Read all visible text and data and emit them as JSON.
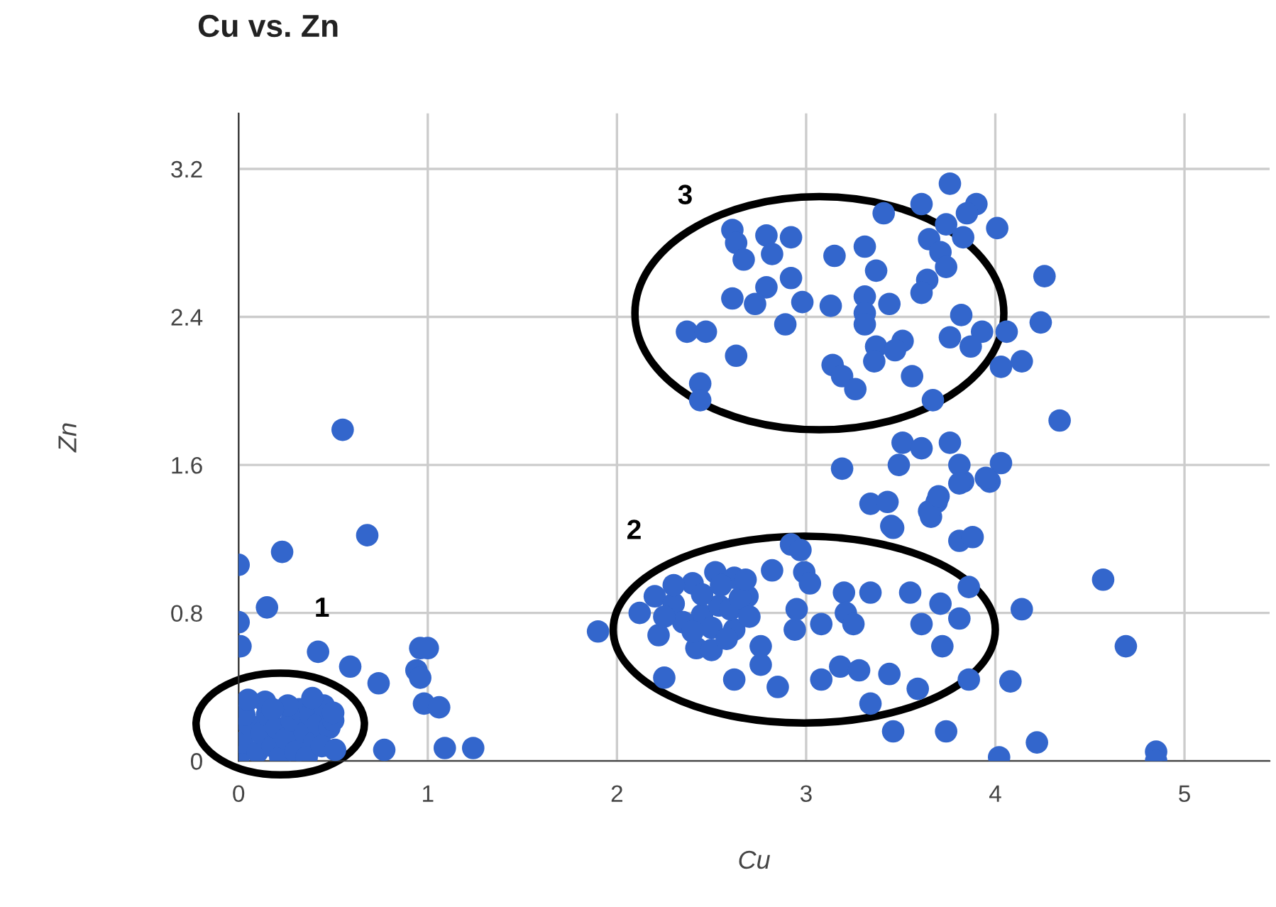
{
  "chart_data": {
    "type": "scatter",
    "title": "Cu vs. Zn",
    "xlabel": "Cu",
    "ylabel": "Zn",
    "xlim": [
      0,
      5.45
    ],
    "ylim": [
      0,
      3.5
    ],
    "xticks": [
      0,
      1,
      2,
      3,
      4,
      5
    ],
    "yticks": [
      0,
      0.8,
      1.6,
      2.4,
      3.2
    ],
    "grid": true,
    "marker": "circle",
    "annotations": [
      "1",
      "2",
      "3"
    ],
    "series": [
      {
        "color": "#3366cc",
        "x": [
          0.55,
          0.68,
          0.23,
          0,
          0.15,
          0,
          0.01,
          0.42,
          0.59,
          0.74,
          0.96,
          1.0,
          0.94,
          0.96,
          0.98,
          1.06,
          0.77,
          1.09,
          1.24,
          1.9,
          0.0,
          0.02,
          0.05,
          0.1,
          0.12,
          0.15,
          0.18,
          0.2,
          0.22,
          0.25,
          0.28,
          0.3,
          0.32,
          0.35,
          0.38,
          0.4,
          0.42,
          0.45,
          0.48,
          0.5,
          0.03,
          0.14,
          0.26,
          0.36,
          0.44,
          0.18,
          0.05,
          0.39,
          0.5,
          0.51,
          2.12,
          2.2,
          2.22,
          2.25,
          2.4,
          2.42,
          2.45,
          2.52,
          2.54,
          2.62,
          2.62,
          2.62,
          2.69,
          2.76,
          2.76,
          2.82,
          2.85,
          2.92,
          2.97,
          2.94,
          2.95,
          2.99,
          3.02,
          3.08,
          3.08,
          3.18,
          3.2,
          3.21,
          3.25,
          3.28,
          3.34,
          3.34,
          3.44,
          3.46,
          3.46,
          3.55,
          3.59,
          3.61,
          3.66,
          3.71,
          3.72,
          3.74,
          3.81,
          3.88,
          3.81,
          3.86,
          3.86,
          4.08,
          4.14,
          4.02,
          4.22,
          2.3,
          2.35,
          2.45,
          2.5,
          2.55,
          2.6,
          2.65,
          2.3,
          2.4,
          2.7,
          2.5,
          2.25,
          2.58,
          2.68,
          4.34,
          4.03,
          3.97,
          3.83,
          4.57,
          4.69,
          4.85,
          4.85,
          3.76,
          3.61,
          3.9,
          3.85,
          3.41,
          3.74,
          4.01,
          2.61,
          2.79,
          2.92,
          3.83,
          3.65,
          2.63,
          3.31,
          3.71,
          2.67,
          2.82,
          3.15,
          3.74,
          3.37,
          2.92,
          4.26,
          3.64,
          2.79,
          3.61,
          3.31,
          2.61,
          2.73,
          2.98,
          3.13,
          3.44,
          3.31,
          3.82,
          2.89,
          4.24,
          2.37,
          2.47,
          3.31,
          3.76,
          3.93,
          4.06,
          3.51,
          3.37,
          3.87,
          3.36,
          3.47,
          2.63,
          3.14,
          4.03,
          4.14,
          3.19,
          3.26,
          3.56,
          2.44,
          2.44,
          3.67,
          3.51,
          3.61,
          3.76,
          3.81,
          3.49,
          3.19,
          3.81,
          3.95,
          3.34,
          3.43,
          3.69,
          3.45,
          3.65,
          3.7
        ],
        "values": [
          1.79,
          1.22,
          1.13,
          1.06,
          0.83,
          0.75,
          0.62,
          0.59,
          0.51,
          0.42,
          0.61,
          0.61,
          0.49,
          0.45,
          0.31,
          0.29,
          0.06,
          0.07,
          0.07,
          0.7,
          0.02,
          0.1,
          0.2,
          0.05,
          0.15,
          0.25,
          0.08,
          0.18,
          0.02,
          0.12,
          0.22,
          0.05,
          0.28,
          0.15,
          0.25,
          0.1,
          0.2,
          0.3,
          0.18,
          0.22,
          0.25,
          0.32,
          0.3,
          0.02,
          0.08,
          0.28,
          0.33,
          0.34,
          0.26,
          0.06,
          0.8,
          0.89,
          0.68,
          0.45,
          0.96,
          0.61,
          0.79,
          1.02,
          0.84,
          0.99,
          0.71,
          0.44,
          0.89,
          0.62,
          0.52,
          1.03,
          0.4,
          1.17,
          1.14,
          0.71,
          0.82,
          1.02,
          0.96,
          0.74,
          0.44,
          0.51,
          0.91,
          0.8,
          0.74,
          0.49,
          0.91,
          0.31,
          0.47,
          0.16,
          1.26,
          0.91,
          0.39,
          0.74,
          1.32,
          0.85,
          0.62,
          0.16,
          1.19,
          1.21,
          0.77,
          0.94,
          0.44,
          0.43,
          0.82,
          0.02,
          0.1,
          0.85,
          0.75,
          0.9,
          0.72,
          0.95,
          0.82,
          0.88,
          0.95,
          0.7,
          0.78,
          0.6,
          0.78,
          0.66,
          0.98,
          1.84,
          1.61,
          1.51,
          1.51,
          0.98,
          0.62,
          0.05,
          0.0,
          3.12,
          3.01,
          3.01,
          2.96,
          2.96,
          2.9,
          2.88,
          2.87,
          2.84,
          2.83,
          2.83,
          2.82,
          2.8,
          2.78,
          2.75,
          2.71,
          2.74,
          2.73,
          2.67,
          2.65,
          2.61,
          2.62,
          2.6,
          2.56,
          2.53,
          2.51,
          2.5,
          2.47,
          2.48,
          2.46,
          2.47,
          2.42,
          2.41,
          2.36,
          2.37,
          2.32,
          2.32,
          2.36,
          2.29,
          2.32,
          2.32,
          2.27,
          2.24,
          2.24,
          2.16,
          2.22,
          2.19,
          2.14,
          2.13,
          2.16,
          2.08,
          2.01,
          2.08,
          2.04,
          1.95,
          1.95,
          1.72,
          1.69,
          1.72,
          1.6,
          1.6,
          1.58,
          1.5,
          1.53,
          1.39,
          1.4,
          1.4,
          1.27,
          1.35,
          1.43
        ]
      }
    ]
  }
}
